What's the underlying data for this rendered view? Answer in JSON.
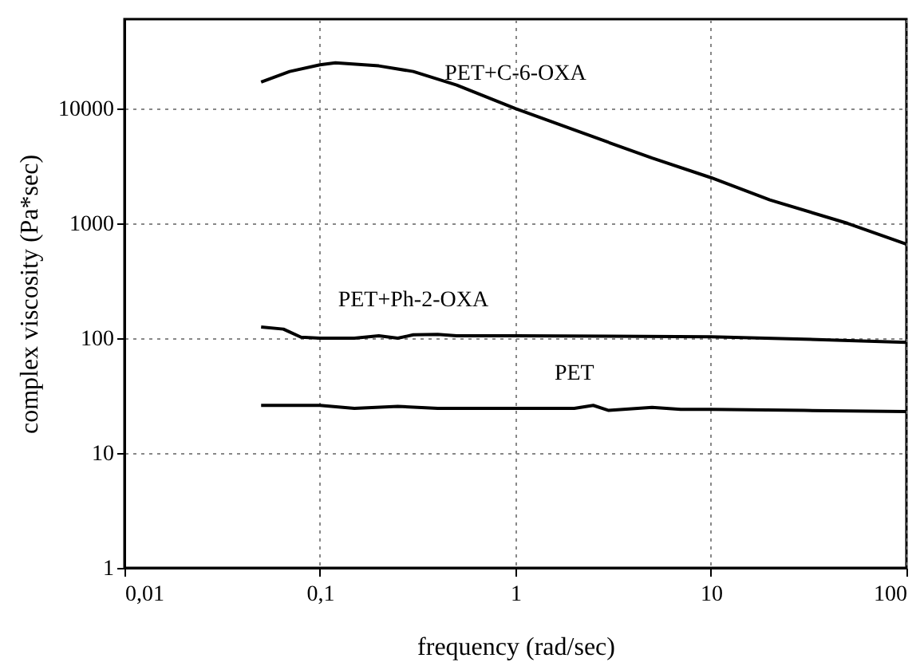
{
  "chart_data": {
    "type": "line",
    "xlabel": "frequency (rad/sec)",
    "ylabel": "complex viscosity (Pa*sec)",
    "log": "xy",
    "grid": true,
    "marker": "none",
    "line_style": "solid",
    "xlim": [
      0.01,
      100
    ],
    "xticks": [
      {
        "value": 0.01,
        "label": "0,01"
      },
      {
        "value": 0.1,
        "label": "0,1"
      },
      1,
      10,
      100
    ],
    "ylim": [
      1,
      60000
    ],
    "yticks": [
      1,
      10,
      100,
      1000,
      10000
    ],
    "series": [
      {
        "name": "PET+C-6-OXA",
        "color": "#000000",
        "x": [
          0.05,
          0.07,
          0.1,
          0.12,
          0.2,
          0.3,
          0.5,
          1,
          2,
          5,
          10,
          20,
          50,
          100
        ],
        "values": [
          17000,
          21000,
          24000,
          25000,
          23500,
          21000,
          16000,
          10000,
          6500,
          3700,
          2500,
          1600,
          1000,
          660
        ]
      },
      {
        "name": "PET+Ph-2-OXA",
        "color": "#000000",
        "x": [
          0.05,
          0.065,
          0.08,
          0.1,
          0.15,
          0.2,
          0.25,
          0.3,
          0.4,
          0.5,
          1,
          3,
          10,
          30,
          100
        ],
        "values": [
          125,
          120,
          102,
          100,
          100,
          105,
          100,
          107,
          108,
          105,
          105,
          104,
          103,
          98,
          92
        ]
      },
      {
        "name": "PET",
        "color": "#000000",
        "x": [
          0.05,
          0.1,
          0.15,
          0.25,
          0.4,
          0.6,
          0.8,
          1,
          2,
          2.5,
          3,
          5,
          7,
          10,
          30,
          100
        ],
        "values": [
          26,
          26,
          24.5,
          25.5,
          24.5,
          24.5,
          24.5,
          24.5,
          24.5,
          26,
          23.5,
          25,
          24,
          24,
          23.5,
          23
        ]
      }
    ]
  }
}
